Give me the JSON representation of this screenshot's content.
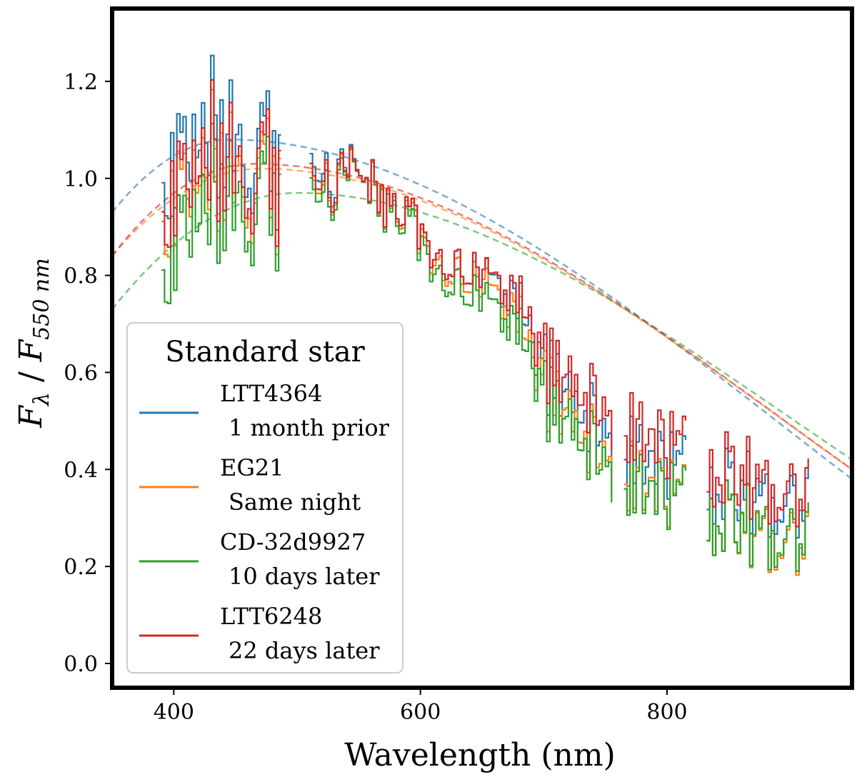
{
  "chart_data": {
    "type": "line",
    "title": "",
    "xlabel": "Wavelength (nm)",
    "ylabel": "F_λ / F_550 nm",
    "ylabel_parts": {
      "f1": "F",
      "sub1": "λ",
      "slash": " / ",
      "f2": "F",
      "sub2": "550 nm"
    },
    "xlim": [
      350,
      950
    ],
    "ylim": [
      -0.05,
      1.35
    ],
    "xticks": [
      400,
      600,
      800
    ],
    "xtick_labels": [
      "400",
      "600",
      "800"
    ],
    "yticks": [
      0.0,
      0.2,
      0.4,
      0.6,
      0.8,
      1.0,
      1.2
    ],
    "ytick_labels": [
      "0.0",
      "0.2",
      "0.4",
      "0.6",
      "0.8",
      "1.0",
      "1.2"
    ],
    "grid": false,
    "legend": {
      "title": "Standard star",
      "position": "lower-left"
    },
    "spectrum_segments": [
      [
        390,
        487
      ],
      [
        510,
        755
      ],
      [
        765,
        815
      ],
      [
        832,
        915
      ]
    ],
    "base_spectrum": {
      "x": [
        390,
        400,
        410,
        420,
        430,
        440,
        450,
        460,
        470,
        480,
        490,
        510,
        520,
        530,
        540,
        550,
        560,
        570,
        580,
        590,
        600,
        610,
        620,
        630,
        640,
        650,
        660,
        670,
        680,
        690,
        700,
        710,
        720,
        730,
        740,
        750,
        755,
        765,
        780,
        800,
        815,
        832,
        850,
        870,
        885,
        900,
        915
      ],
      "y": [
        0.92,
        1.0,
        1.02,
        1.05,
        1.1,
        1.02,
        0.98,
        1.0,
        1.05,
        1.0,
        0.95,
        0.98,
        1.0,
        0.97,
        1.02,
        1.0,
        0.98,
        0.95,
        0.93,
        0.9,
        0.88,
        0.86,
        0.84,
        0.82,
        0.8,
        0.78,
        0.76,
        0.74,
        0.72,
        0.65,
        0.6,
        0.57,
        0.54,
        0.52,
        0.5,
        0.48,
        0.46,
        0.45,
        0.44,
        0.42,
        0.4,
        0.36,
        0.35,
        0.33,
        0.31,
        0.3,
        0.31
      ]
    },
    "series": [
      {
        "name": "LTT4364",
        "note": "1 month prior",
        "color": "#1f77b4",
        "spectrum_offsets": [
          [
            390,
            0.06
          ],
          [
            470,
            0.04
          ],
          [
            550,
            0.0
          ],
          [
            650,
            0.01
          ],
          [
            760,
            0.0
          ],
          [
            920,
            0.02
          ]
        ],
        "model_curve": {
          "peak_x": 445,
          "peak_y": 1.08,
          "values": {
            "350": 0.93,
            "950": 0.38
          }
        }
      },
      {
        "name": "EG21",
        "note": "Same night",
        "color": "#ff7f0e",
        "spectrum_offsets": [
          [
            390,
            -0.02
          ],
          [
            470,
            -0.02
          ],
          [
            550,
            0.0
          ],
          [
            650,
            -0.01
          ],
          [
            760,
            -0.05
          ],
          [
            920,
            -0.06
          ]
        ],
        "model_curve": {
          "peak_x": 470,
          "peak_y": 1.02,
          "values": {
            "350": 0.84,
            "950": 0.4
          }
        }
      },
      {
        "name": "CD-32d9927",
        "note": "10 days later",
        "color": "#2ca02c",
        "spectrum_offsets": [
          [
            390,
            -0.12
          ],
          [
            470,
            -0.06
          ],
          [
            550,
            0.0
          ],
          [
            650,
            -0.04
          ],
          [
            760,
            -0.06
          ],
          [
            920,
            -0.05
          ]
        ],
        "model_curve": {
          "peak_x": 500,
          "peak_y": 0.97,
          "values": {
            "350": 0.73,
            "950": 0.42
          }
        }
      },
      {
        "name": "LTT6248",
        "note": "22 days later",
        "color": "#d62728",
        "spectrum_offsets": [
          [
            390,
            0.0
          ],
          [
            470,
            0.0
          ],
          [
            550,
            0.0
          ],
          [
            650,
            0.01
          ],
          [
            760,
            0.05
          ],
          [
            920,
            0.04
          ]
        ],
        "model_curve": {
          "peak_x": 465,
          "peak_y": 1.03,
          "values": {
            "350": 0.84,
            "950": 0.4
          }
        }
      }
    ]
  }
}
